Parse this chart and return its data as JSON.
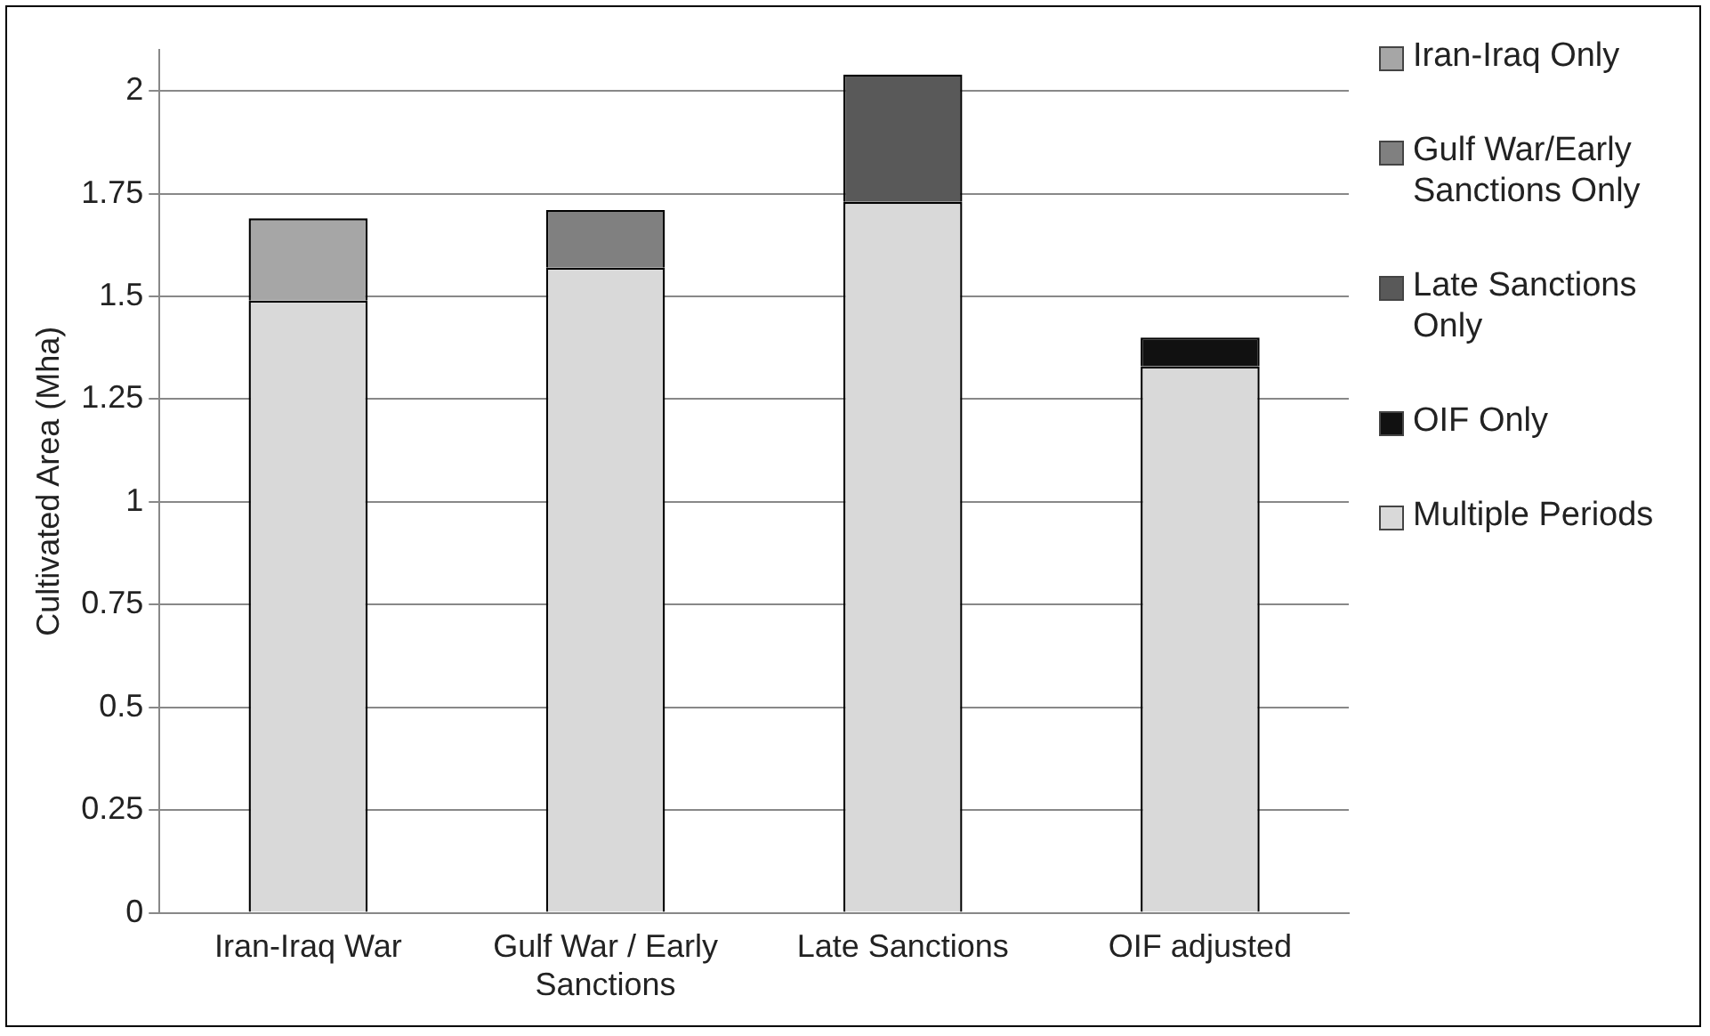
{
  "chart_data": {
    "type": "bar",
    "stacked": true,
    "ylabel": "Cultivated Area (Mha)",
    "categories": [
      "Iran-Iraq War",
      "Gulf War / Early Sanctions",
      "Late Sanctions",
      "OIF adjusted"
    ],
    "series": [
      {
        "name": "Multiple Periods",
        "color": "#d9d9d9",
        "values": [
          1.49,
          1.57,
          1.73,
          1.33
        ]
      },
      {
        "name": "OIF Only",
        "color": "#111111",
        "values": [
          null,
          null,
          null,
          0.07
        ]
      },
      {
        "name": "Late Sanctions Only",
        "color": "#595959",
        "values": [
          null,
          null,
          0.31,
          null
        ]
      },
      {
        "name": "Gulf War/Early Sanctions Only",
        "color": "#808080",
        "values": [
          null,
          0.14,
          null,
          null
        ]
      },
      {
        "name": "Iran-Iraq Only",
        "color": "#a6a6a6",
        "values": [
          0.2,
          null,
          null,
          null
        ]
      }
    ],
    "ylim": [
      0,
      2.1
    ],
    "yticks": [
      0,
      0.25,
      0.5,
      0.75,
      1,
      1.25,
      1.5,
      1.75,
      2
    ],
    "grid": "y",
    "legend": "right"
  }
}
